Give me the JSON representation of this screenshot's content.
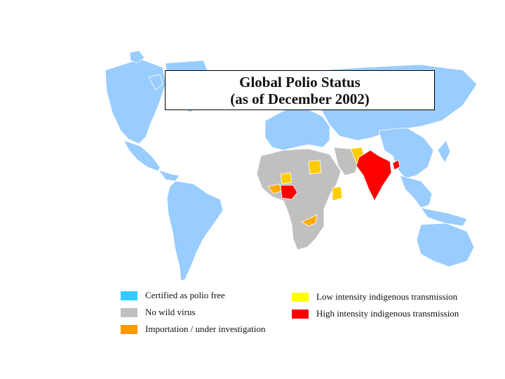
{
  "title": {
    "line1": "Global Polio Status",
    "line2": "(as of December 2002)"
  },
  "legend": [
    {
      "label": "Certified as polio free",
      "color": "#33ccff"
    },
    {
      "label": "No wild virus",
      "color": "#c0c0c0"
    },
    {
      "label": "Importation / under investigation",
      "color": "#ff9900"
    },
    {
      "label": "Low intensity indigenous transmission",
      "color": "#ffff00"
    },
    {
      "label": "High intensity indigenous transmission",
      "color": "#ff0000"
    }
  ],
  "map_colors": {
    "certified": "#99ccff",
    "no_wild_virus": "#c0c0c0",
    "importation": "#ffaa00",
    "low_intensity": "#ffcc00",
    "high_intensity": "#ff0000"
  }
}
